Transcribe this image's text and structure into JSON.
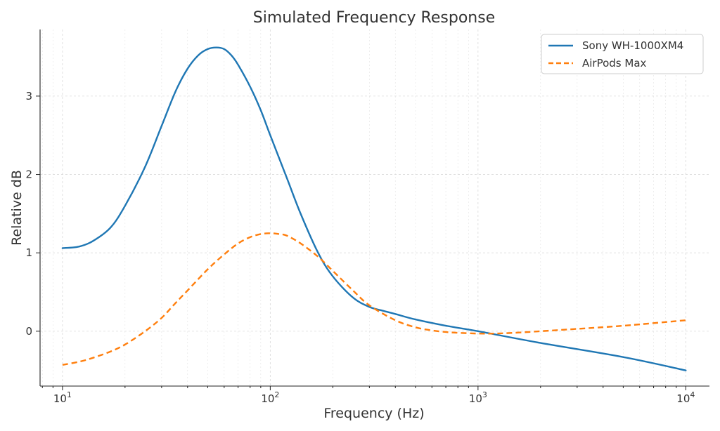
{
  "chart_data": {
    "type": "line",
    "title": "Simulated Frequency Response",
    "xlabel": "Frequency (Hz)",
    "ylabel": "Relative dB",
    "xscale": "log",
    "xlim": [
      7.8,
      13000
    ],
    "ylim": [
      -0.7,
      3.85
    ],
    "x_ticks": [
      {
        "value": 10,
        "base": "10",
        "exp": "1"
      },
      {
        "value": 100,
        "base": "10",
        "exp": "2"
      },
      {
        "value": 1000,
        "base": "10",
        "exp": "3"
      },
      {
        "value": 10000,
        "base": "10",
        "exp": "4"
      }
    ],
    "y_ticks": [
      0,
      1,
      2,
      3
    ],
    "grid": true,
    "legend": "top-right",
    "series": [
      {
        "name": "Sony WH-1000XM4",
        "color": "#1f77b4",
        "style": "solid",
        "x": [
          10,
          12,
          14,
          17,
          20,
          25,
          30,
          35,
          40,
          45,
          50,
          55,
          60,
          65,
          70,
          80,
          90,
          100,
          120,
          140,
          170,
          200,
          250,
          300,
          350,
          400,
          500,
          700,
          1000,
          2000,
          5000,
          10000
        ],
        "y": [
          1.06,
          1.08,
          1.15,
          1.32,
          1.6,
          2.1,
          2.62,
          3.06,
          3.35,
          3.52,
          3.6,
          3.62,
          3.6,
          3.52,
          3.4,
          3.12,
          2.82,
          2.5,
          1.96,
          1.5,
          1.0,
          0.7,
          0.43,
          0.31,
          0.26,
          0.22,
          0.15,
          0.07,
          0.0,
          -0.15,
          -0.33,
          -0.5
        ]
      },
      {
        "name": "AirPods Max",
        "color": "#ff7f0e",
        "style": "dashed",
        "x": [
          10,
          12,
          14,
          17,
          20,
          25,
          30,
          35,
          40,
          50,
          60,
          70,
          80,
          90,
          100,
          110,
          120,
          140,
          170,
          200,
          250,
          300,
          400,
          500,
          600,
          700,
          800,
          1000,
          1200,
          1500,
          2000,
          3000,
          5000,
          10000
        ],
        "y": [
          -0.43,
          -0.39,
          -0.34,
          -0.26,
          -0.17,
          0.0,
          0.17,
          0.36,
          0.52,
          0.79,
          0.98,
          1.12,
          1.2,
          1.24,
          1.25,
          1.24,
          1.22,
          1.12,
          0.95,
          0.77,
          0.52,
          0.33,
          0.14,
          0.05,
          0.01,
          -0.01,
          -0.02,
          -0.03,
          -0.03,
          -0.02,
          0.0,
          0.03,
          0.07,
          0.14
        ]
      }
    ]
  }
}
